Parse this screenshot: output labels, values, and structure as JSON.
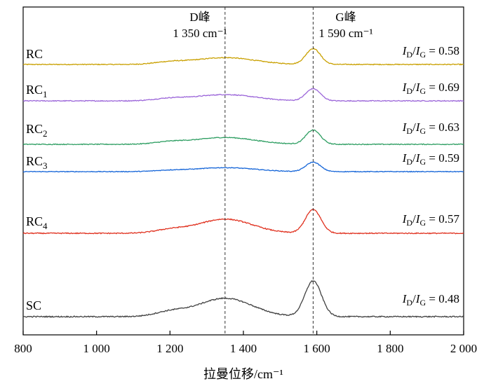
{
  "chart_data": {
    "type": "line",
    "xlabel": "拉曼位移/cm⁻¹",
    "xlim": [
      800,
      2000
    ],
    "xticks": [
      800,
      1000,
      1200,
      1400,
      1600,
      1800,
      2000
    ],
    "xtick_labels": [
      "800",
      "1 000",
      "1 200",
      "1 400",
      "1 600",
      "1 800",
      "2 000"
    ],
    "ylabel": "",
    "grid": false,
    "legend": "none",
    "reference_lines": [
      {
        "label": "D峰",
        "value_label": "1 350 cm⁻¹",
        "x": 1350
      },
      {
        "label": "G峰",
        "value_label": "1 590 cm⁻¹",
        "x": 1590
      }
    ],
    "series": [
      {
        "label": "RC",
        "sub": "",
        "ratio": "= 0.58",
        "color": "#C9A000",
        "base": 0.5,
        "d_amp": 6.5,
        "d_width": 115,
        "g_amp": 15,
        "g_width": 28,
        "shoulder_amp": 2,
        "noise": 0.6
      },
      {
        "label": "RC",
        "sub": "1",
        "ratio": "= 0.69",
        "color": "#9B65D9",
        "base": 0.5,
        "d_amp": 6.0,
        "d_width": 115,
        "g_amp": 11.5,
        "g_width": 28,
        "shoulder_amp": 2,
        "noise": 0.6
      },
      {
        "label": "RC",
        "sub": "2",
        "ratio": "= 0.63",
        "color": "#2E9E62",
        "base": 0.5,
        "d_amp": 6.5,
        "d_width": 115,
        "g_amp": 13.5,
        "g_width": 28,
        "shoulder_amp": 2,
        "noise": 0.6
      },
      {
        "label": "RC",
        "sub": "3",
        "ratio": "= 0.59",
        "color": "#1565D8",
        "base": 0.5,
        "d_amp": 3.8,
        "d_width": 115,
        "g_amp": 9,
        "g_width": 28,
        "shoulder_amp": 1,
        "noise": 0.5
      },
      {
        "label": "RC",
        "sub": "4",
        "ratio": "= 0.57",
        "color": "#E0301E",
        "base": 0.5,
        "d_amp": 13.5,
        "d_width": 105,
        "g_amp": 22.5,
        "g_width": 30,
        "shoulder_amp": 3,
        "noise": 0.7
      },
      {
        "label": "SC",
        "sub": "",
        "ratio": "= 0.48",
        "color": "#404040",
        "base": 0.5,
        "d_amp": 17.5,
        "d_width": 105,
        "g_amp": 34,
        "g_width": 32,
        "shoulder_amp": 4,
        "noise": 0.8
      }
    ]
  }
}
